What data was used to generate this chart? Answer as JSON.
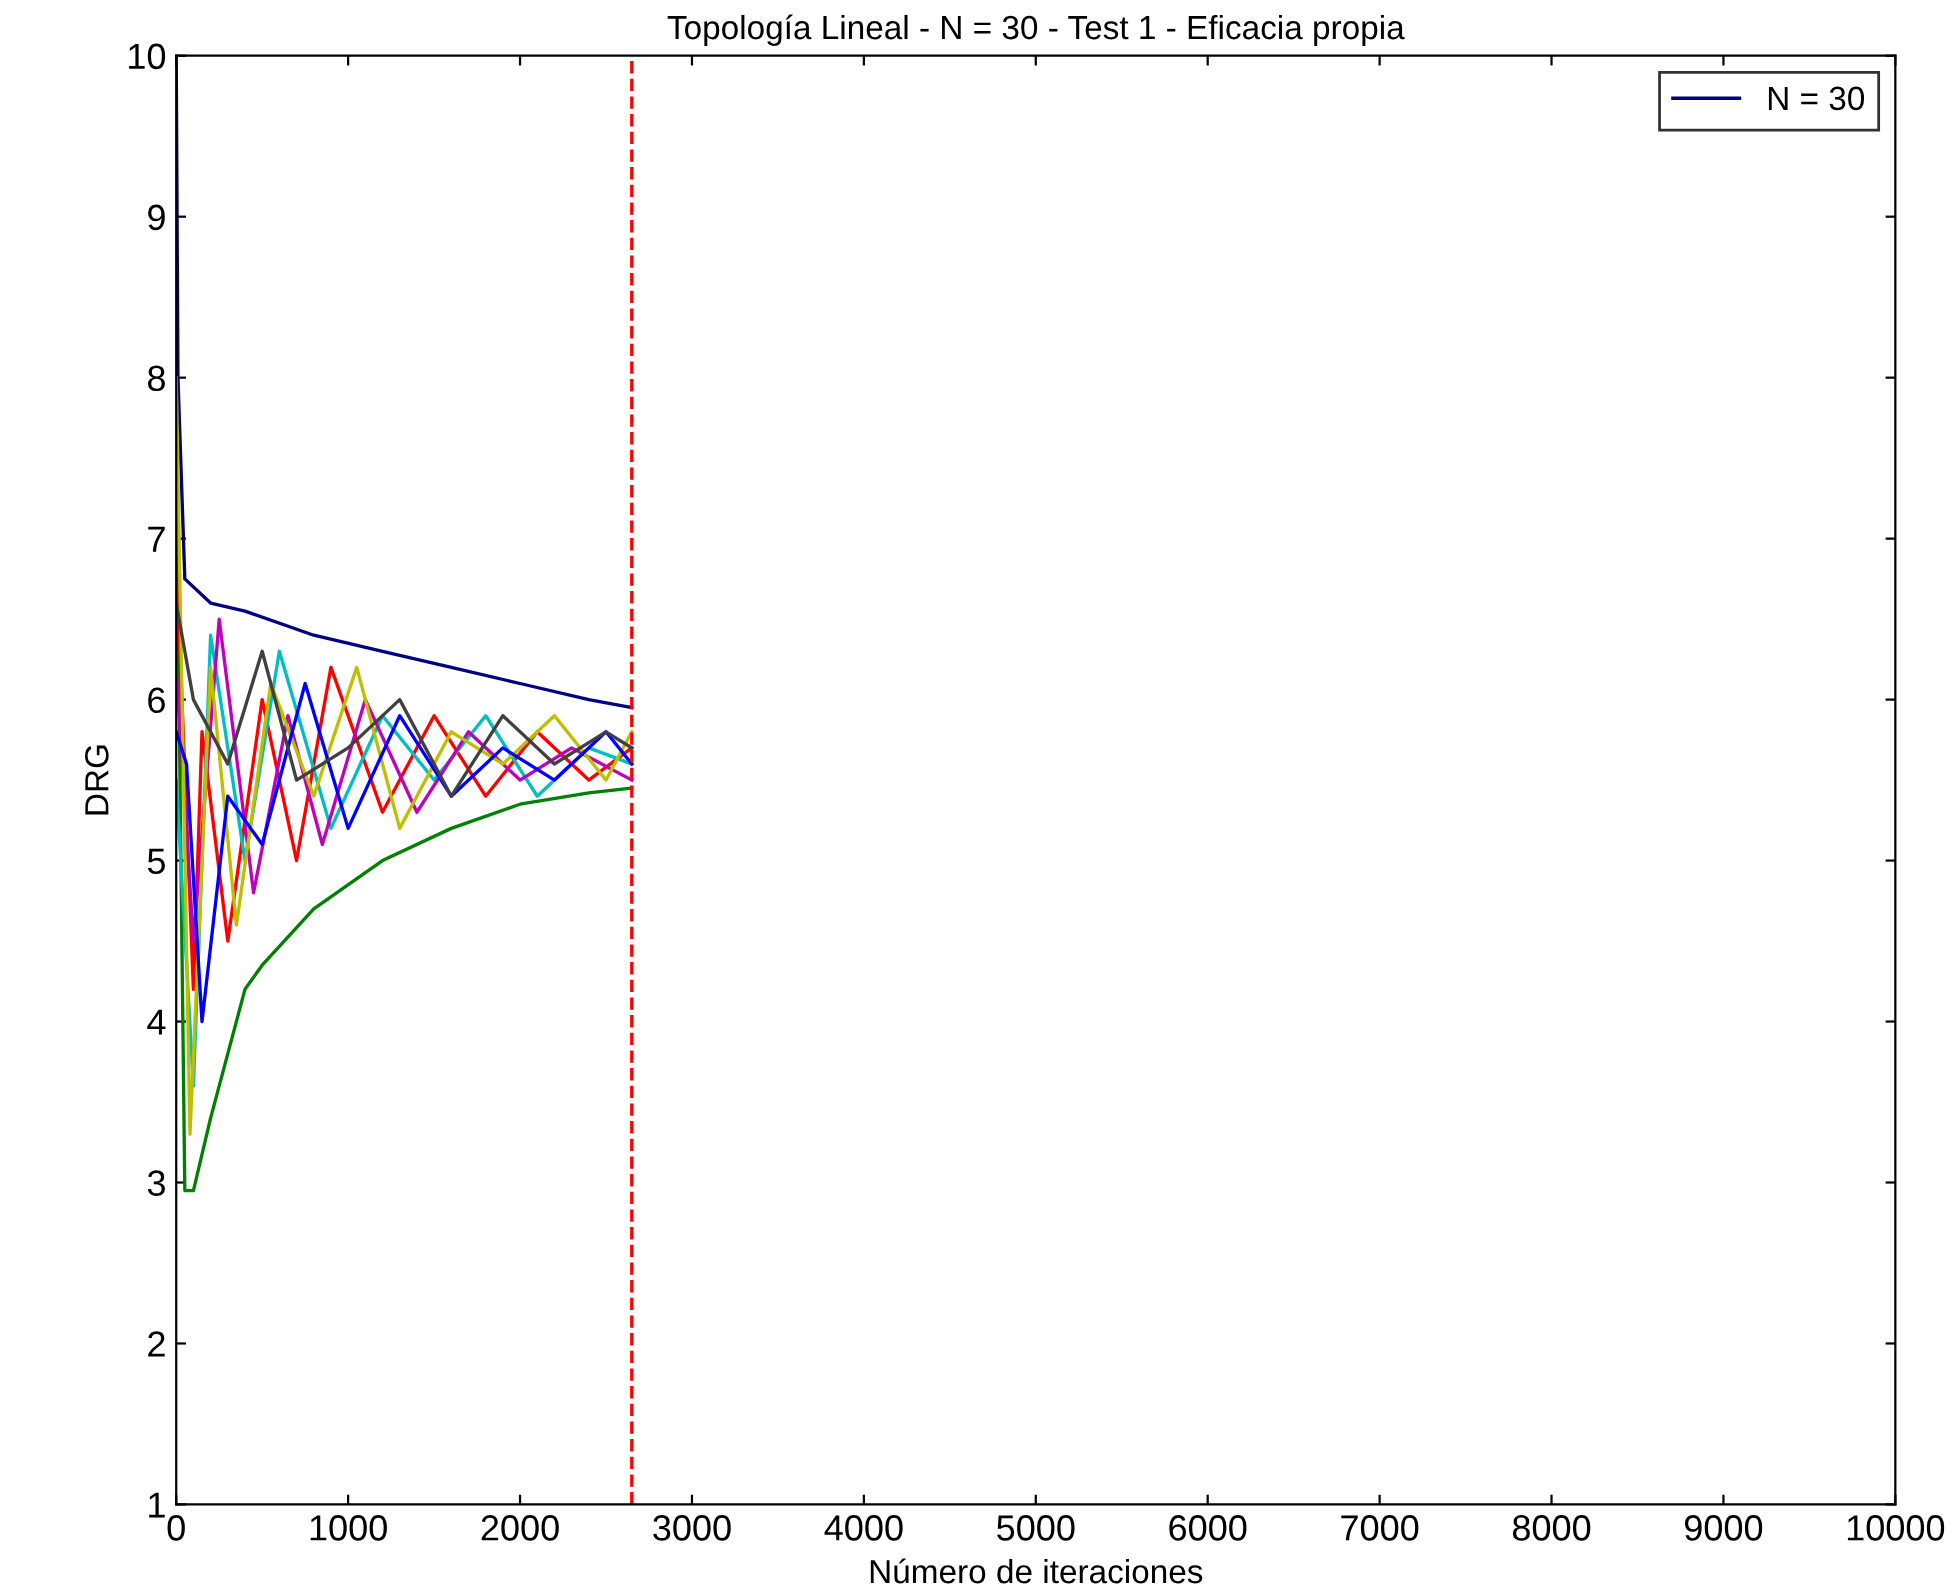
{
  "chart_data": {
    "type": "line",
    "title": "Topología Lineal - N = 30 - Test 1 - Eficacia propia",
    "xlabel": "Número de iteraciones",
    "ylabel": "DRG",
    "xlim": [
      0,
      10000
    ],
    "xticks": [
      0,
      1000,
      2000,
      3000,
      4000,
      5000,
      6000,
      7000,
      8000,
      9000,
      10000
    ],
    "ylim": [
      1,
      10
    ],
    "yticks": [
      1,
      2,
      3,
      4,
      5,
      6,
      7,
      8,
      9,
      10
    ],
    "grid": false,
    "legend": "top right",
    "marker": "none",
    "line_style": "solid",
    "series": [
      {
        "name": "N = 30",
        "color": "#000080",
        "x": [
          0,
          10,
          50,
          200,
          400,
          800,
          1200,
          1600,
          2000,
          2400,
          2650
        ],
        "values": [
          10,
          8,
          6.75,
          6.6,
          6.55,
          6.4,
          6.3,
          6.2,
          6.1,
          6.0,
          5.95
        ]
      },
      {
        "color": "#008000",
        "x": [
          0,
          50,
          100,
          200,
          400,
          500,
          800,
          1200,
          1600,
          2000,
          2400,
          2650
        ],
        "values": [
          7.5,
          2.95,
          2.95,
          3.4,
          4.2,
          4.35,
          4.7,
          5.0,
          5.2,
          5.35,
          5.42,
          5.45
        ]
      },
      {
        "color": "#ff0000",
        "x": [
          0,
          100,
          150,
          300,
          500,
          700,
          900,
          1200,
          1500,
          1800,
          2100,
          2400,
          2650
        ],
        "values": [
          6.9,
          4.2,
          5.8,
          4.5,
          6.0,
          5.0,
          6.2,
          5.3,
          5.9,
          5.4,
          5.8,
          5.5,
          5.7
        ]
      },
      {
        "color": "#00bfbf",
        "x": [
          0,
          100,
          200,
          400,
          600,
          900,
          1200,
          1500,
          1800,
          2100,
          2400,
          2650
        ],
        "values": [
          5.5,
          3.6,
          6.4,
          5.0,
          6.3,
          5.2,
          5.9,
          5.5,
          5.9,
          5.4,
          5.7,
          5.6
        ]
      },
      {
        "color": "#bf00bf",
        "x": [
          0,
          100,
          250,
          450,
          650,
          850,
          1100,
          1400,
          1700,
          2000,
          2300,
          2650
        ],
        "values": [
          6.2,
          4.5,
          6.5,
          4.8,
          5.9,
          5.1,
          6.0,
          5.3,
          5.8,
          5.5,
          5.7,
          5.5
        ]
      },
      {
        "color": "#bfbf00",
        "x": [
          0,
          80,
          200,
          350,
          550,
          800,
          1050,
          1300,
          1600,
          1900,
          2200,
          2500,
          2650
        ],
        "values": [
          8.0,
          3.3,
          6.2,
          4.6,
          6.1,
          5.4,
          6.2,
          5.2,
          5.8,
          5.6,
          5.9,
          5.5,
          5.8
        ]
      },
      {
        "color": "#0000ff",
        "x": [
          0,
          60,
          150,
          300,
          500,
          750,
          1000,
          1300,
          1600,
          1900,
          2200,
          2500,
          2650
        ],
        "values": [
          5.8,
          5.6,
          4.0,
          5.4,
          5.1,
          6.1,
          5.2,
          5.9,
          5.4,
          5.7,
          5.5,
          5.8,
          5.6
        ]
      },
      {
        "color": "#404040",
        "x": [
          0,
          100,
          300,
          500,
          700,
          1000,
          1300,
          1600,
          1900,
          2200,
          2500,
          2650
        ],
        "values": [
          6.6,
          6.0,
          5.6,
          6.3,
          5.5,
          5.7,
          6.0,
          5.4,
          5.9,
          5.6,
          5.8,
          5.7
        ]
      }
    ],
    "ref_lines": [
      {
        "axis": "x",
        "value": 2650,
        "color": "#ff0000",
        "line_style": "dashed"
      }
    ]
  }
}
